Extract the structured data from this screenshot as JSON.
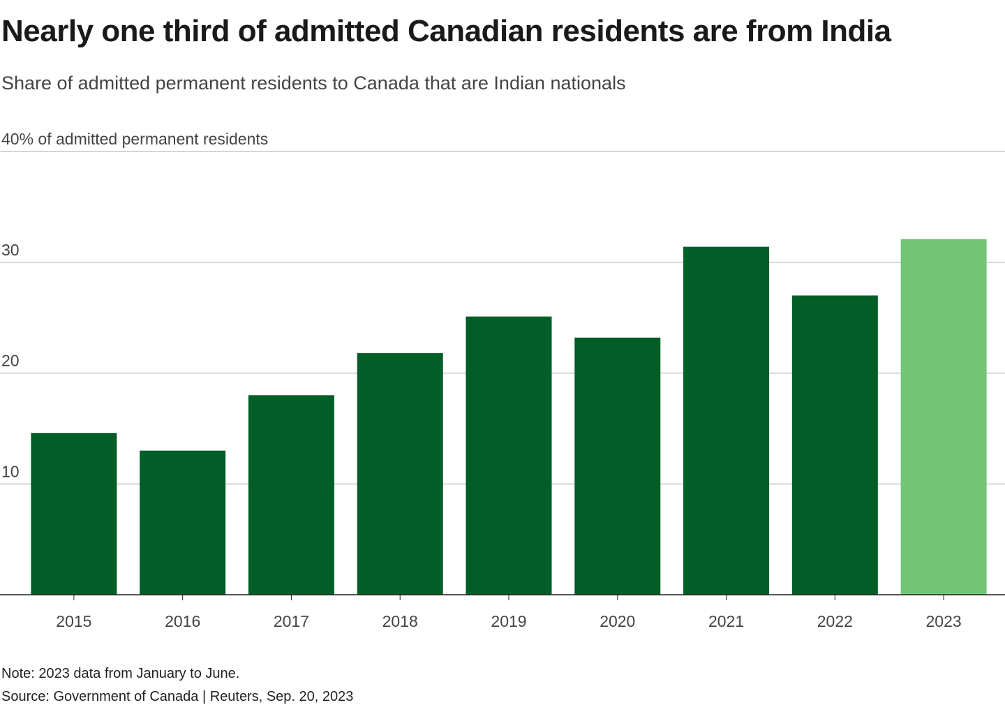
{
  "header": {
    "title": "Nearly one third of admitted Canadian residents are from India",
    "subtitle": "Share of admitted permanent residents to Canada that are Indian nationals"
  },
  "footer": {
    "note": "Note: 2023 data from January to June.",
    "source": "Source: Government of Canada | Reuters, Sep. 20, 2023"
  },
  "colors": {
    "bar": "#005e26",
    "bar_highlight": "#74c476",
    "grid": "#c8c8c8",
    "axis": "#222222"
  },
  "chart_data": {
    "type": "bar",
    "title": "Nearly one third of admitted Canadian residents are from India",
    "subtitle": "Share of admitted permanent residents to Canada that are Indian nationals",
    "xlabel": "",
    "ylabel": "% of admitted permanent residents",
    "categories": [
      "2015",
      "2016",
      "2017",
      "2018",
      "2019",
      "2020",
      "2021",
      "2022",
      "2023"
    ],
    "values": [
      14.6,
      13.0,
      18.0,
      21.8,
      25.1,
      23.2,
      31.4,
      27.0,
      32.1
    ],
    "highlight": [
      "2023"
    ],
    "ylim": [
      0,
      40
    ],
    "yticks": [
      0,
      10,
      20,
      30,
      40
    ],
    "ytick_labels": [
      "",
      "10",
      "20",
      "30",
      "40% of admitted permanent residents"
    ],
    "grid": true,
    "legend": "none"
  }
}
